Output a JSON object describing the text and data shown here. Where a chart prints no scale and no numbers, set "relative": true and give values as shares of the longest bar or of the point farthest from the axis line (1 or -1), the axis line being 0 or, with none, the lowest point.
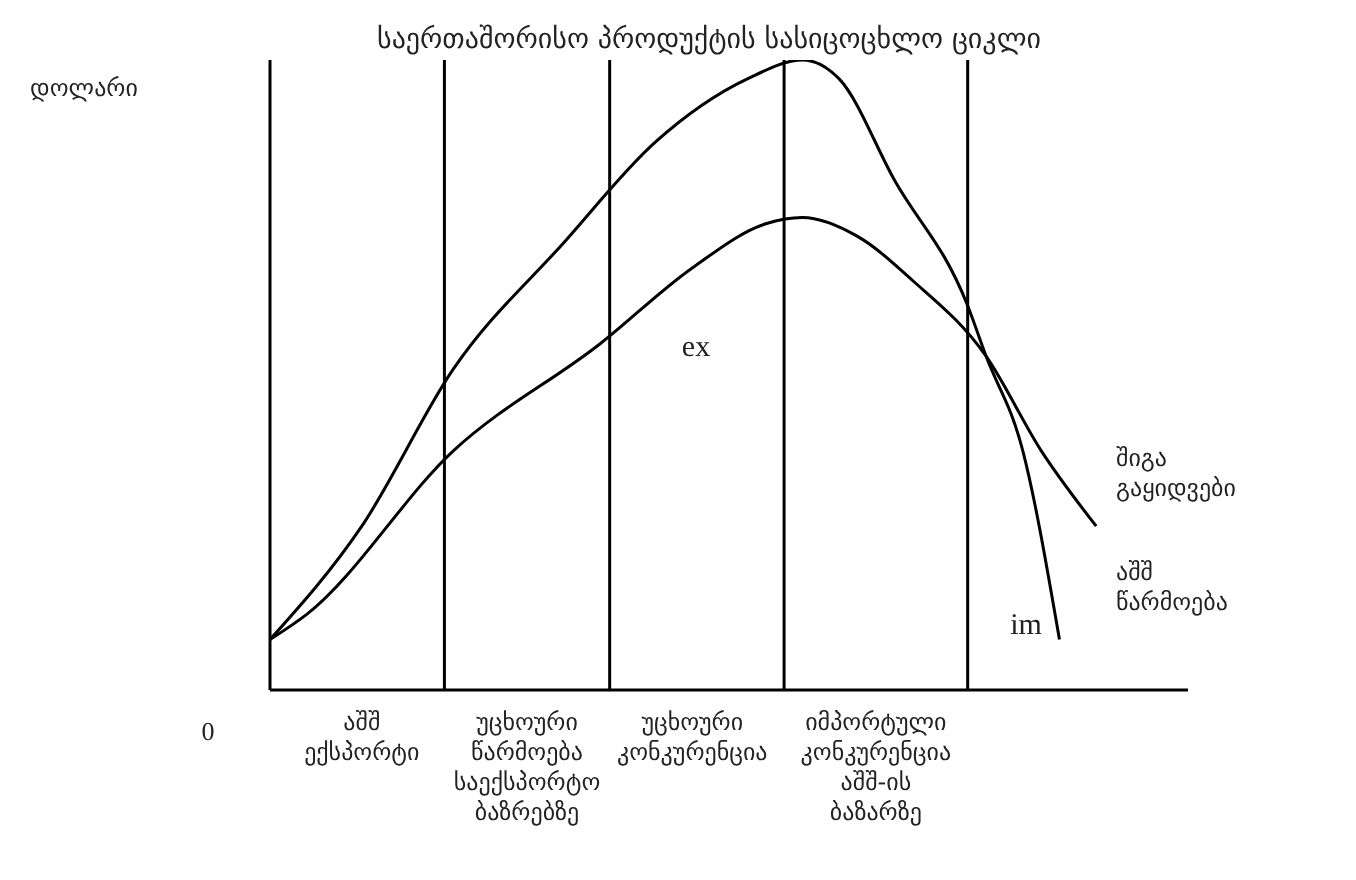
{
  "chart_data": {
    "type": "line",
    "title": "საერთაშორისო პროდუქტის სასიცოცხლო ციკლი",
    "relative": true,
    "categories": [
      null,
      null,
      null,
      null,
      null,
      "აშშ\nექსპორტი",
      null,
      null,
      null,
      null,
      null,
      null,
      null,
      null,
      "უცხოური\nწარმოება\nსაექსპორტო\nბაზრებზე",
      null,
      null,
      null,
      null,
      null,
      null,
      null,
      null,
      "უცხოური\nკონკურენცია",
      null,
      null,
      null,
      null,
      null,
      null,
      null,
      null,
      null,
      "იმპორტული\nკონკურენცია\nაშშ-ის\nბაზარზე",
      null,
      null,
      null,
      null,
      null,
      null,
      null,
      null,
      null,
      null,
      null,
      null,
      null,
      null,
      null,
      null,
      null
    ],
    "series": [
      {
        "name": "აშშ წარმოება",
        "color": "#000000",
        "values": [
          0.08,
          null,
          null,
          null,
          null,
          0.26,
          null,
          null,
          null,
          null,
          0.51,
          null,
          null,
          null,
          null,
          null,
          0.71,
          null,
          null,
          null,
          null,
          0.87,
          null,
          null,
          null,
          null,
          0.97,
          null,
          null,
          1,
          null,
          0.97,
          null,
          null,
          0.81,
          null,
          null,
          null,
          0.61,
          0.53,
          null,
          0.38,
          null,
          0.08,
          null,
          null,
          null,
          null,
          null,
          null,
          null
        ]
      },
      {
        "name": "შიგა გაყიდვები",
        "color": "#000000",
        "values": [
          0.08,
          null,
          0.12,
          null,
          null,
          null,
          null,
          null,
          null,
          null,
          0.38,
          null,
          null,
          null,
          null,
          null,
          null,
          null,
          0.55,
          null,
          null,
          null,
          null,
          0.67,
          null,
          null,
          null,
          0.74,
          null,
          0.75,
          null,
          null,
          0.72,
          null,
          null,
          0.65,
          null,
          null,
          null,
          0.53,
          null,
          null,
          0.38,
          null,
          null,
          0.26,
          null,
          null,
          null,
          null,
          null
        ]
      }
    ],
    "annotations": [
      "ex",
      "im",
      "0",
      "დოლარი"
    ],
    "grid": "x",
    "marker": "none",
    "line_style": "solid"
  }
}
